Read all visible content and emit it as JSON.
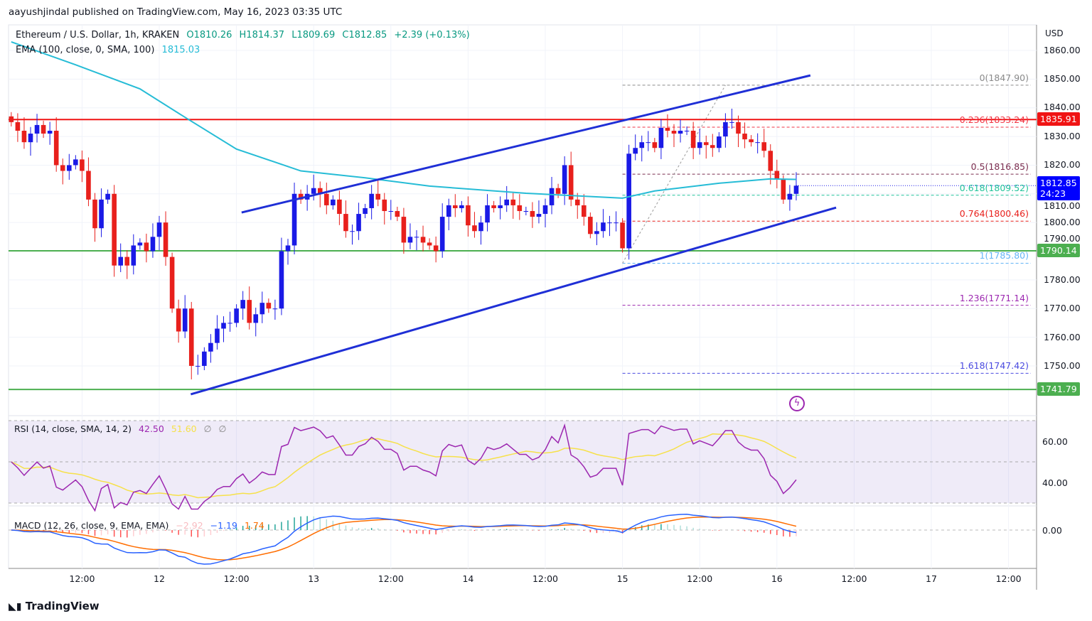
{
  "header": {
    "published": "aayushjindal published on TradingView.com, May 16, 2023 03:35 UTC"
  },
  "legend": {
    "symbol": "Ethereum / U.S. Dollar, 1h, KRAKEN",
    "open": "O1810.26",
    "high": "H1814.37",
    "low": "L1809.69",
    "close": "C1812.85",
    "change": "+2.39 (+0.13%)",
    "ema_label": "EMA (100, close, 0, SMA, 100)",
    "ema_value": "1815.03"
  },
  "rsi": {
    "label": "RSI (14, close, SMA, 14, 2)",
    "value": "42.50",
    "sma": "51.60",
    "extra1": "∅",
    "extra2": "∅",
    "ticks": [
      "60.00",
      "40.00"
    ]
  },
  "macd": {
    "label": "MACD (12, 26, close, 9, EMA, EMA)",
    "hist": "−2.92",
    "macd": "−1.19",
    "signal": "1.74",
    "tick": "0.00"
  },
  "footer": {
    "brand": "TradingView"
  },
  "colors": {
    "up": "#1a1ae6",
    "down": "#e8201c",
    "ema": "#26bcd6",
    "channel": "#1f2fd6",
    "resist": "#f01414",
    "support": "#4caf50",
    "rsi": "#9c27b0",
    "rsi_sma": "#f6e14a",
    "macd": "#2962ff",
    "signal": "#ff6d00"
  },
  "chart_data": {
    "type": "candlestick",
    "title": "Ethereum / U.S. Dollar, 1h, KRAKEN",
    "currency_label": "USD",
    "ylim": [
      1740,
      1865
    ],
    "price_ticks": [
      "1860.00",
      "1850.00",
      "1840.00",
      "1830.00",
      "1820.00",
      "1810.00",
      "1800.00",
      "1790.00",
      "1780.00",
      "1770.00",
      "1760.00",
      "1750.00"
    ],
    "time_ticks": [
      {
        "h": 11,
        "label": "12:00"
      },
      {
        "h": 23,
        "label": "12"
      },
      {
        "h": 35,
        "label": "12:00"
      },
      {
        "h": 47,
        "label": "13"
      },
      {
        "h": 59,
        "label": "12:00"
      },
      {
        "h": 71,
        "label": "14"
      },
      {
        "h": 83,
        "label": "12:00"
      },
      {
        "h": 95,
        "label": "15"
      },
      {
        "h": 107,
        "label": "12:00"
      },
      {
        "h": 119,
        "label": "16"
      },
      {
        "h": 131,
        "label": "12:00"
      },
      {
        "h": 143,
        "label": "17"
      },
      {
        "h": 155,
        "label": "12:00"
      }
    ],
    "first_open": 1837,
    "close": [
      1835,
      1832,
      1828,
      1831,
      1834,
      1831,
      1832,
      1820,
      1818,
      1820,
      1822,
      1818,
      1808,
      1798,
      1808,
      1810,
      1785,
      1788,
      1785,
      1792,
      1793,
      1790,
      1795,
      1800,
      1788,
      1770,
      1762,
      1770,
      1750,
      1750,
      1755,
      1758,
      1763,
      1765,
      1765,
      1770,
      1773,
      1765,
      1768,
      1772,
      1770,
      1770,
      1790,
      1792,
      1810,
      1808,
      1810,
      1812,
      1810,
      1806,
      1808,
      1803,
      1797,
      1797,
      1803,
      1805,
      1810,
      1808,
      1804,
      1804,
      1802,
      1793,
      1795,
      1795,
      1793,
      1792,
      1790,
      1802,
      1806,
      1805,
      1806,
      1799,
      1797,
      1800,
      1806,
      1805,
      1806,
      1808,
      1806,
      1804,
      1804,
      1802,
      1803,
      1806,
      1812,
      1810,
      1820,
      1808,
      1806,
      1802,
      1796,
      1797,
      1800,
      1800,
      1800,
      1791,
      1824,
      1826,
      1828,
      1828,
      1826,
      1833,
      1832,
      1831,
      1832,
      1832,
      1826,
      1828,
      1827,
      1826,
      1830,
      1835,
      1835,
      1831,
      1829,
      1828,
      1828,
      1825,
      1818,
      1815,
      1808,
      1810,
      1812.85
    ],
    "ema100": [
      [
        0,
        1863
      ],
      [
        10,
        1855
      ],
      [
        20,
        1846.6
      ],
      [
        27,
        1836.7
      ],
      [
        35,
        1825.6
      ],
      [
        45,
        1818
      ],
      [
        55,
        1815.6
      ],
      [
        65,
        1812.7
      ],
      [
        80,
        1810.2
      ],
      [
        95,
        1808.5
      ],
      [
        100,
        1811
      ],
      [
        110,
        1813.7
      ],
      [
        118,
        1815.2
      ],
      [
        122,
        1815.03
      ]
    ],
    "channel_upper": [
      [
        35.8,
        1803.5
      ],
      [
        124.2,
        1851.3
      ]
    ],
    "channel_lower": [
      [
        27.9,
        1740.1
      ],
      [
        128.2,
        1805.2
      ]
    ],
    "horizontal_levels": [
      {
        "price": 1835.91,
        "label": "1835.91",
        "kind": "resist"
      },
      {
        "price": 1790.14,
        "label": "1790.14",
        "kind": "support"
      },
      {
        "price": 1741.79,
        "label": "1741.79",
        "kind": "support"
      }
    ],
    "last_price": {
      "label": "1812.85",
      "countdown": "24:23",
      "price": 1812.85
    },
    "fib": {
      "from": [
        95,
        1785.8
      ],
      "to": [
        111,
        1847.9
      ],
      "levels": [
        {
          "ratio": "0",
          "price": 1847.9,
          "label": "0(1847.90)",
          "color": "#8a8a8a"
        },
        {
          "ratio": "0.236",
          "price": 1833.24,
          "label": "0.236(1833.24)",
          "color": "#f23645"
        },
        {
          "ratio": "0.5",
          "price": 1816.85,
          "label": "0.5(1816.85)",
          "color": "#7b2d4f"
        },
        {
          "ratio": "0.618",
          "price": 1809.52,
          "label": "0.618(1809.52)",
          "color": "#22c39a"
        },
        {
          "ratio": "0.764",
          "price": 1800.46,
          "label": "0.764(1800.46)",
          "color": "#e8201c"
        },
        {
          "ratio": "1",
          "price": 1785.8,
          "label": "1(1785.80)",
          "color": "#64b5f6"
        },
        {
          "ratio": "1.236",
          "price": 1771.14,
          "label": "1.236(1771.14)",
          "color": "#9c27b0"
        },
        {
          "ratio": "1.618",
          "price": 1747.42,
          "label": "1.618(1747.42)",
          "color": "#4a4ae0"
        }
      ]
    }
  }
}
